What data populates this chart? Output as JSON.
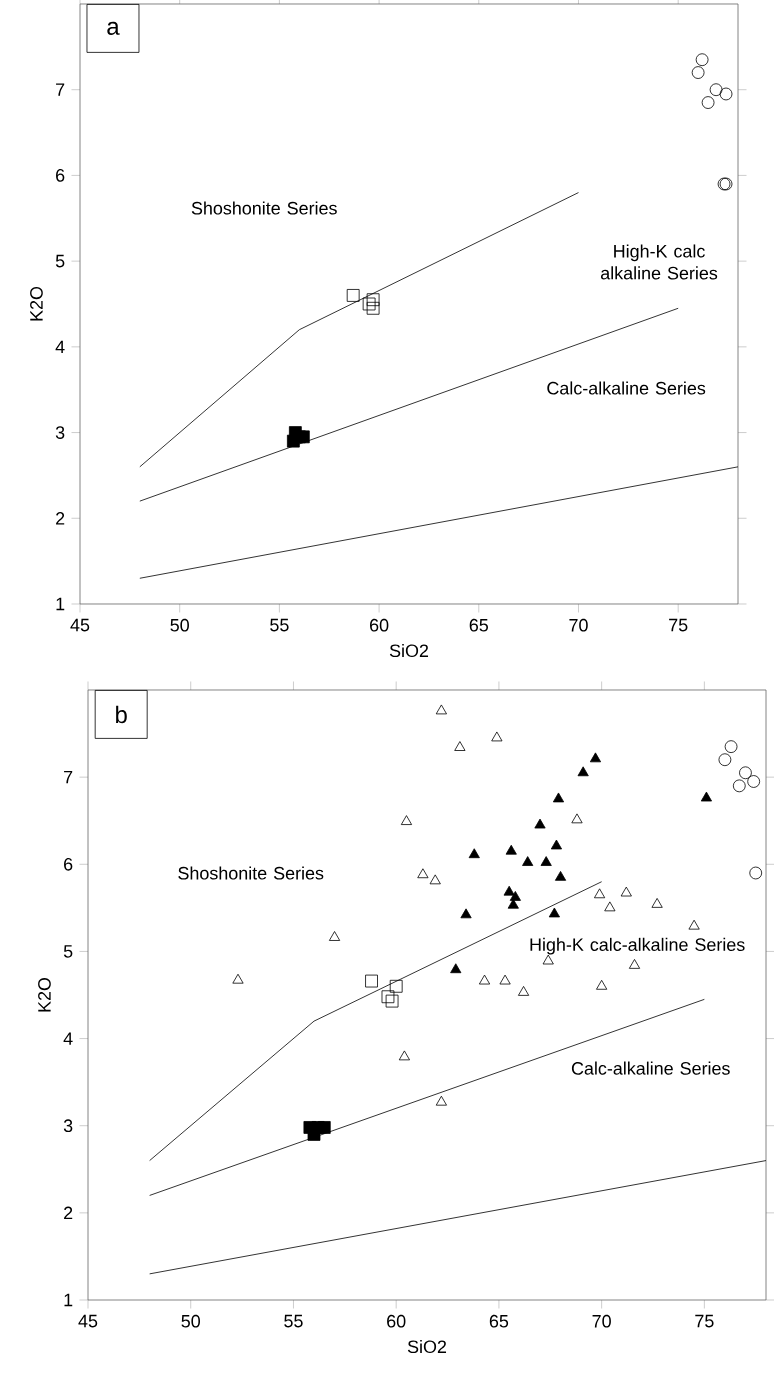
{
  "chart_data": [
    {
      "type": "scatter",
      "xlabel": "SiO2",
      "ylabel": "K2O",
      "xlim": [
        45,
        78
      ],
      "ylim": [
        1,
        8
      ],
      "xticks": [
        45,
        50,
        55,
        60,
        65,
        70,
        75
      ],
      "yticks": [
        1,
        2,
        3,
        4,
        5,
        6,
        7
      ],
      "annotations": [
        "a",
        "Shoshonite Series",
        "High-K calc alkaline Series",
        "Calc-alkaline Series"
      ],
      "series": [
        {
          "type": "line",
          "marker": "none",
          "color": "#000000",
          "x": [
            48,
            56,
            70
          ],
          "values": [
            2.6,
            4.2,
            5.8
          ]
        },
        {
          "type": "line",
          "marker": "none",
          "color": "#000000",
          "x": [
            48,
            75
          ],
          "values": [
            2.2,
            4.45
          ]
        },
        {
          "type": "line",
          "marker": "none",
          "color": "#000000",
          "x": [
            48,
            78
          ],
          "values": [
            1.3,
            2.6
          ]
        },
        {
          "marker": "square",
          "color": "#000000",
          "x": [
            58.7,
            59.5,
            59.7,
            59.7
          ],
          "values": [
            4.6,
            4.5,
            4.55,
            4.45
          ]
        },
        {
          "marker": "square",
          "colors": [
            "#000000",
            "#000000",
            "#000000",
            "#000000"
          ],
          "x": [
            55.7,
            55.8,
            56.2,
            56.0
          ],
          "values": [
            2.9,
            3.0,
            2.95,
            2.95
          ]
        },
        {
          "marker": "circle",
          "color": "#000000",
          "x": [
            76.0,
            76.2,
            76.5,
            76.9,
            77.4,
            77.3,
            77.4
          ],
          "values": [
            7.2,
            7.35,
            6.85,
            7.0,
            6.95,
            5.9,
            5.9
          ]
        }
      ]
    },
    {
      "type": "scatter",
      "xlabel": "SiO2",
      "ylabel": "K2O",
      "xlim": [
        45,
        78
      ],
      "ylim": [
        1,
        8
      ],
      "xticks": [
        45,
        50,
        55,
        60,
        65,
        70,
        75
      ],
      "yticks": [
        1,
        2,
        3,
        4,
        5,
        6,
        7
      ],
      "annotations": [
        "b",
        "Shoshonite Series",
        "High-K calc-alkaline Series",
        "Calc-alkaline Series"
      ],
      "series": [
        {
          "type": "line",
          "marker": "none",
          "color": "#000000",
          "x": [
            48,
            56,
            70
          ],
          "values": [
            2.6,
            4.2,
            5.8
          ]
        },
        {
          "type": "line",
          "marker": "none",
          "color": "#000000",
          "x": [
            48,
            75
          ],
          "values": [
            2.2,
            4.45
          ]
        },
        {
          "type": "line",
          "marker": "none",
          "color": "#000000",
          "x": [
            48,
            78
          ],
          "values": [
            1.3,
            2.6
          ]
        },
        {
          "marker": "triangle",
          "color": "#000000",
          "x": [
            62.2,
            63.1,
            64.9,
            60.5,
            68.8,
            61.3,
            61.9,
            69.9,
            70.4,
            71.2,
            72.7,
            74.5,
            57.0,
            52.3,
            64.3,
            65.3,
            66.2,
            67.4,
            71.6,
            70.0,
            60.4,
            62.2
          ],
          "values": [
            7.76,
            7.34,
            7.45,
            6.49,
            6.51,
            5.88,
            5.81,
            5.65,
            5.5,
            5.67,
            5.54,
            5.29,
            5.16,
            4.67,
            4.66,
            4.66,
            4.53,
            4.89,
            4.84,
            4.6,
            3.79,
            3.27
          ]
        },
        {
          "marker": "triangle",
          "colors": [
            "#000000",
            "#000000",
            "#000000",
            "#000000",
            "#000000",
            "#000000",
            "#000000",
            "#000000",
            "#000000",
            "#000000",
            "#000000",
            "#000000",
            "#000000",
            "#000000",
            "#000000",
            "#000000",
            "#000000"
          ],
          "x": [
            69.7,
            69.1,
            67.9,
            67.0,
            63.8,
            65.6,
            66.4,
            67.3,
            67.8,
            68.0,
            65.5,
            65.8,
            65.7,
            63.4,
            67.7,
            62.9,
            75.1
          ],
          "values": [
            7.21,
            7.05,
            6.75,
            6.45,
            6.11,
            6.15,
            6.02,
            6.02,
            6.21,
            5.85,
            5.68,
            5.62,
            5.53,
            5.42,
            5.43,
            4.79,
            6.76
          ]
        },
        {
          "marker": "square",
          "color": "#000000",
          "x": [
            58.8,
            60.0,
            59.6,
            59.8
          ],
          "values": [
            4.66,
            4.6,
            4.48,
            4.43
          ]
        },
        {
          "marker": "square",
          "colors": [
            "#000000",
            "#000000",
            "#000000",
            "#000000"
          ],
          "x": [
            55.8,
            56.5,
            56.0,
            56.2
          ],
          "values": [
            2.98,
            2.98,
            2.9,
            2.98
          ]
        },
        {
          "marker": "circle",
          "color": "#000000",
          "x": [
            76.0,
            76.3,
            76.7,
            77.0,
            77.4,
            77.5
          ],
          "values": [
            7.2,
            7.35,
            6.9,
            7.05,
            6.95,
            5.9
          ]
        }
      ]
    }
  ]
}
